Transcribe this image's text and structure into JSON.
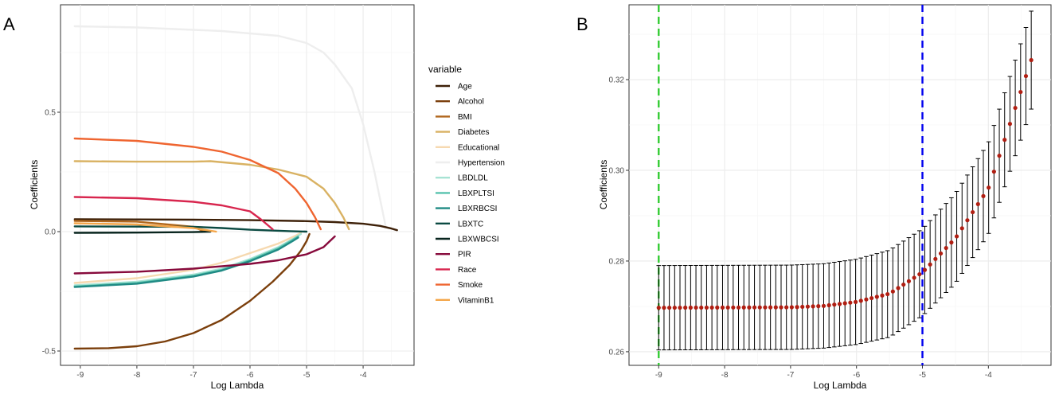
{
  "chart_data": [
    {
      "panel": "A",
      "type": "line",
      "xlabel": "Log Lambda",
      "ylabel": "Coefficients",
      "xlim": [
        -9.35,
        -3.1
      ],
      "ylim": [
        -0.56,
        0.95
      ],
      "xticks": [
        -9,
        -8,
        -7,
        -6,
        -5,
        -4
      ],
      "yticks": [
        -0.5,
        0.0,
        0.5
      ],
      "ytick_labels": [
        "-0.5",
        "0.0",
        "0.5"
      ],
      "legend_title": "variable",
      "series": [
        {
          "name": "Age",
          "color": "#3d2008",
          "x": [
            -9.1,
            -8,
            -7,
            -6,
            -5,
            -4.5,
            -4,
            -3.7,
            -3.5,
            -3.4
          ],
          "y": [
            0.052,
            0.051,
            0.05,
            0.048,
            0.044,
            0.04,
            0.033,
            0.024,
            0.013,
            0.006
          ]
        },
        {
          "name": "Alcohol",
          "color": "#7b3f0c",
          "x": [
            -9.1,
            -8.5,
            -8,
            -7.5,
            -7,
            -6.5,
            -6,
            -5.6,
            -5.3,
            -5.1,
            -5.0,
            -4.95
          ],
          "y": [
            -0.49,
            -0.488,
            -0.48,
            -0.46,
            -0.425,
            -0.37,
            -0.29,
            -0.21,
            -0.14,
            -0.08,
            -0.04,
            -0.01
          ]
        },
        {
          "name": "BMI",
          "color": "#b0661c",
          "x": [
            -9.1,
            -8,
            -7,
            -6.8
          ],
          "y": [
            0.045,
            0.042,
            0.02,
            0.0
          ]
        },
        {
          "name": "Diabetes",
          "color": "#d9b263",
          "x": [
            -9.1,
            -8,
            -7,
            -6.7,
            -6,
            -5.5,
            -5,
            -4.7,
            -4.5,
            -4.35,
            -4.25
          ],
          "y": [
            0.295,
            0.293,
            0.293,
            0.295,
            0.28,
            0.26,
            0.23,
            0.18,
            0.12,
            0.06,
            0.01
          ]
        },
        {
          "name": "Educational",
          "color": "#f6d9b0",
          "x": [
            -9.1,
            -8,
            -7,
            -6.5,
            -6,
            -5.5,
            -5.2,
            -5.1
          ],
          "y": [
            -0.215,
            -0.195,
            -0.16,
            -0.13,
            -0.09,
            -0.05,
            -0.018,
            -0.005
          ]
        },
        {
          "name": "Hypertension",
          "color": "#eeeeee",
          "x": [
            -9.1,
            -8,
            -7,
            -6.5,
            -6,
            -5.5,
            -5,
            -4.7,
            -4.5,
            -4.2,
            -4.0,
            -3.8,
            -3.6
          ],
          "y": [
            0.86,
            0.855,
            0.845,
            0.84,
            0.83,
            0.82,
            0.79,
            0.75,
            0.7,
            0.6,
            0.45,
            0.25,
            0.02
          ]
        },
        {
          "name": "LBDLDL",
          "color": "#a7e3d4",
          "x": [
            -9.1,
            -8,
            -7,
            -6.5,
            -6,
            -5.5,
            -5.2,
            -5.1
          ],
          "y": [
            -0.225,
            -0.21,
            -0.18,
            -0.155,
            -0.115,
            -0.065,
            -0.025,
            -0.01
          ]
        },
        {
          "name": "LBXPLTSI",
          "color": "#58c2ad",
          "x": [
            -9.1,
            -8,
            -7,
            -6.5,
            -6,
            -5.5,
            -5.25,
            -5.15
          ],
          "y": [
            -0.23,
            -0.215,
            -0.185,
            -0.16,
            -0.12,
            -0.07,
            -0.035,
            -0.02
          ]
        },
        {
          "name": "LBXRBCSI",
          "color": "#1f8a84",
          "x": [
            -9.1,
            -8,
            -7,
            -6.5,
            -6,
            -5.5,
            -5.25,
            -5.15
          ],
          "y": [
            -0.232,
            -0.218,
            -0.188,
            -0.163,
            -0.124,
            -0.075,
            -0.04,
            -0.025
          ]
        },
        {
          "name": "LBXTC",
          "color": "#0b4a42",
          "x": [
            -9.1,
            -8,
            -7,
            -6.5,
            -6,
            -5.3,
            -5.0
          ],
          "y": [
            0.022,
            0.021,
            0.02,
            0.015,
            0.008,
            0.002,
            0.0
          ]
        },
        {
          "name": "LBXWBCSI",
          "color": "#08251e",
          "x": [
            -9.1,
            -8,
            -7,
            -6.7
          ],
          "y": [
            -0.005,
            -0.004,
            -0.002,
            0.0
          ]
        },
        {
          "name": "PIR",
          "color": "#870a3c",
          "x": [
            -9.1,
            -8,
            -7,
            -6,
            -5.5,
            -5,
            -4.7,
            -4.5
          ],
          "y": [
            -0.175,
            -0.168,
            -0.155,
            -0.135,
            -0.12,
            -0.095,
            -0.065,
            -0.02
          ]
        },
        {
          "name": "Race",
          "color": "#d8264e",
          "x": [
            -9.1,
            -8,
            -7,
            -6.5,
            -6,
            -5.8,
            -5.6
          ],
          "y": [
            0.145,
            0.14,
            0.125,
            0.11,
            0.085,
            0.05,
            0.01
          ]
        },
        {
          "name": "Smoke",
          "color": "#ef6530",
          "x": [
            -9.1,
            -8,
            -7,
            -6.5,
            -6,
            -5.5,
            -5.2,
            -5.0,
            -4.85,
            -4.75
          ],
          "y": [
            0.39,
            0.38,
            0.355,
            0.335,
            0.3,
            0.245,
            0.18,
            0.12,
            0.06,
            0.01
          ]
        },
        {
          "name": "VitaminB1",
          "color": "#f4a64a",
          "x": [
            -9.1,
            -8,
            -7,
            -6.6
          ],
          "y": [
            0.035,
            0.03,
            0.015,
            0.0
          ]
        }
      ]
    },
    {
      "panel": "B",
      "type": "scatter",
      "xlabel": "Log Lambda",
      "ylabel": "Coefficients",
      "xlim": [
        -9.45,
        -3.05
      ],
      "ylim": [
        0.257,
        0.3365
      ],
      "xticks": [
        -9,
        -8,
        -7,
        -6,
        -5,
        -4
      ],
      "yticks": [
        0.26,
        0.28,
        0.3,
        0.32
      ],
      "ytick_labels": [
        "0.26",
        "0.28",
        "0.30",
        "0.32"
      ],
      "x_start": -9.0,
      "x_end": -3.35,
      "n_points": 71,
      "ymin_line": -9.0,
      "y1se_line": -5.0,
      "ymin_color": "#33cc33",
      "y1se_color": "#0000ee",
      "point_color": "#b01e12",
      "errbar_color": "#000000",
      "cv_curve": {
        "anchor_x": [
          -9.0,
          -7.0,
          -6.5,
          -6.0,
          -5.5,
          -5.0,
          -4.5,
          -4.0,
          -3.35
        ],
        "mean": [
          0.2697,
          0.2698,
          0.2701,
          0.271,
          0.2728,
          0.2775,
          0.285,
          0.296,
          0.3243
        ],
        "half_width_se": [
          0.0093,
          0.0093,
          0.0093,
          0.0094,
          0.0096,
          0.0096,
          0.0099,
          0.0101,
          0.0108
        ]
      }
    }
  ]
}
